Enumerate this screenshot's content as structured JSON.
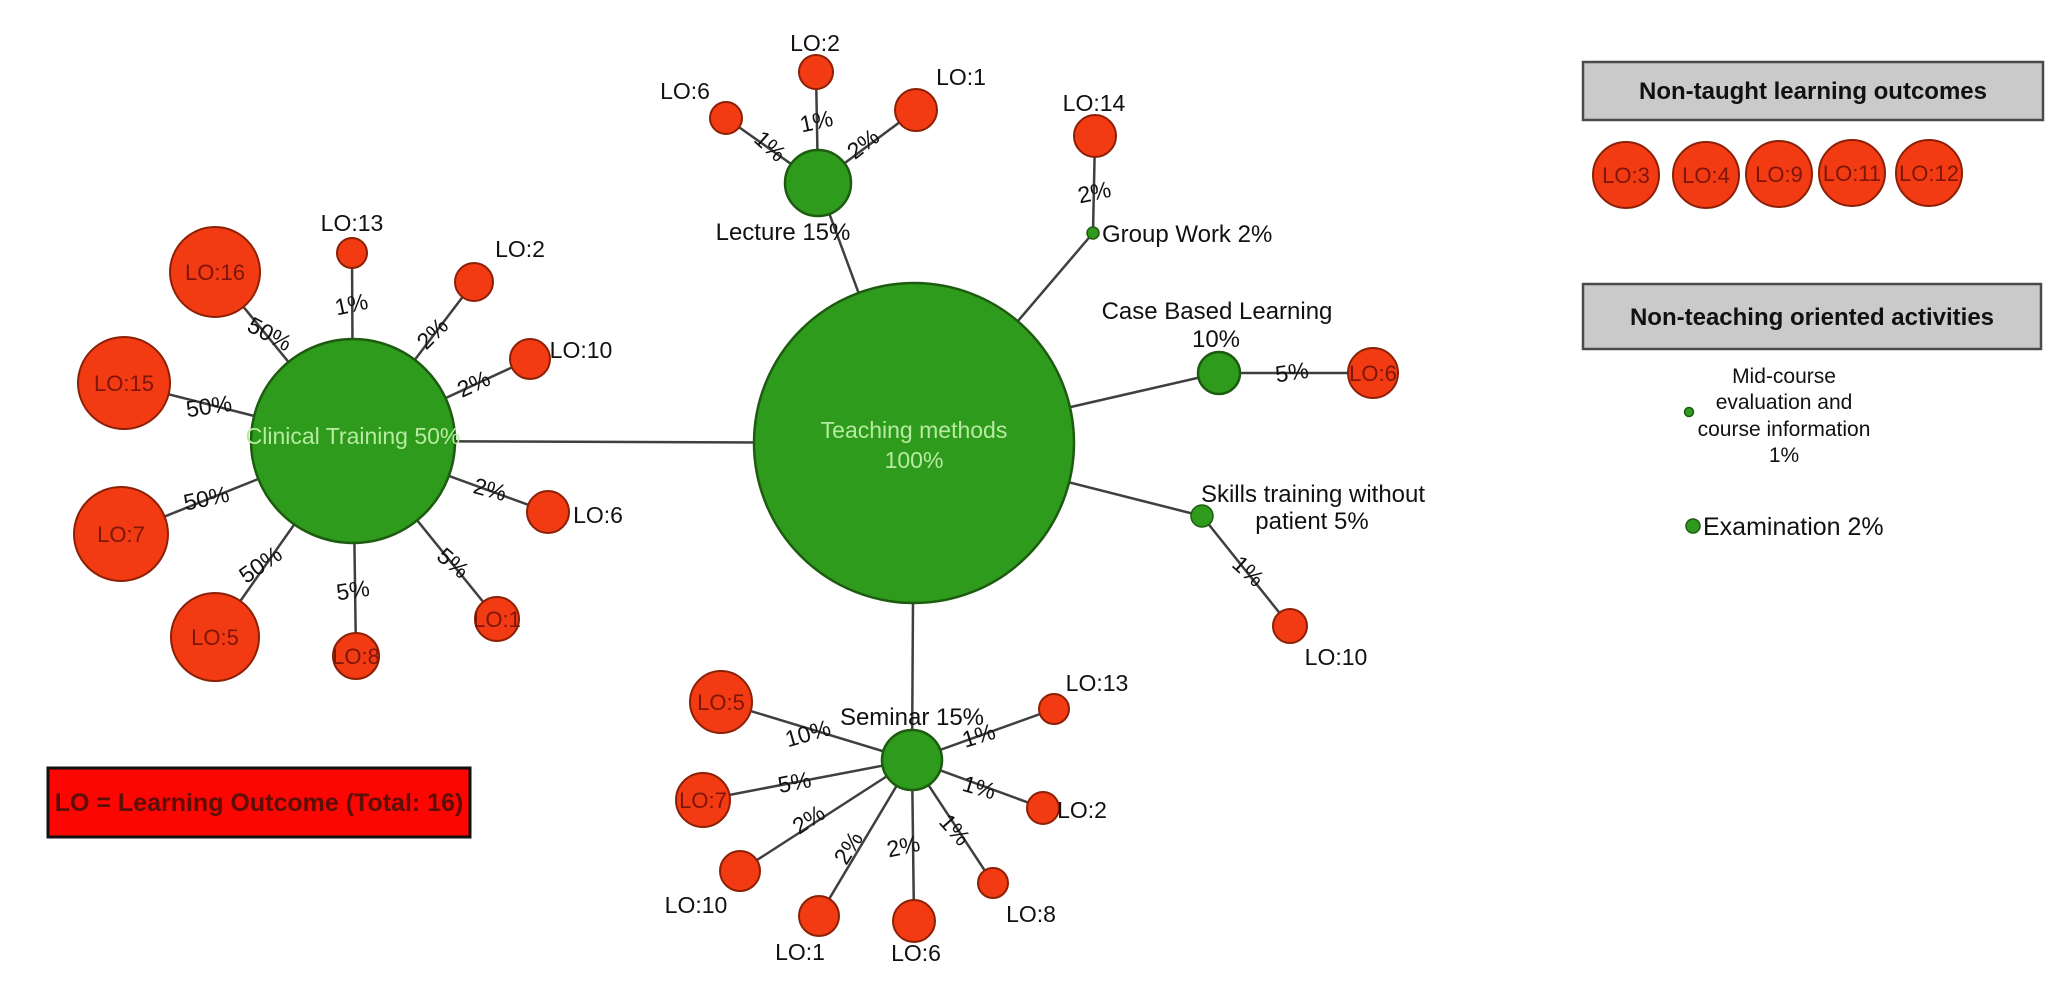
{
  "colors": {
    "hub_green": "#2f9b1c",
    "hub_green_stroke": "#1d5c10",
    "satellite_red": "#f23b12",
    "satellite_red_stroke": "#8c2007",
    "hub_label_text": "#b6eba1",
    "satellite_label_text": "#7e150a",
    "edge_line": "#3f3f3f",
    "outside_text": "#111111",
    "header_bg": "#cacaca",
    "header_border": "#4a4a4a",
    "legend_bg": "#fb0602",
    "legend_border": "#111111",
    "legend_text": "#5c0f06"
  },
  "graph": {
    "center": {
      "label": "Teaching methods",
      "pct": "100%"
    },
    "methods": [
      {
        "name": "Clinical Training",
        "label": "Clinical Training 50%",
        "outcomes": [
          {
            "lo": "LO:16",
            "pct": "50%"
          },
          {
            "lo": "LO:13",
            "pct": "1%"
          },
          {
            "lo": "LO:2",
            "pct": "2%"
          },
          {
            "lo": "LO:10",
            "pct": "2%"
          },
          {
            "lo": "LO:6",
            "pct": "2%"
          },
          {
            "lo": "LO:1",
            "pct": "5%"
          },
          {
            "lo": "LO:8",
            "pct": "5%"
          },
          {
            "lo": "LO:5",
            "pct": "50%"
          },
          {
            "lo": "LO:7",
            "pct": "50%"
          },
          {
            "lo": "LO:15",
            "pct": "50%"
          }
        ]
      },
      {
        "name": "Lecture",
        "label": "Lecture 15%",
        "outcomes": [
          {
            "lo": "LO:6",
            "pct": "1%"
          },
          {
            "lo": "LO:2",
            "pct": "1%"
          },
          {
            "lo": "LO:1",
            "pct": "2%"
          }
        ]
      },
      {
        "name": "Group Work",
        "label": "Group Work 2%",
        "outcomes": [
          {
            "lo": "LO:14",
            "pct": "2%"
          }
        ]
      },
      {
        "name": "Case Based Learning",
        "label": "Case Based Learning",
        "pct": "10%",
        "outcomes": [
          {
            "lo": "LO:6",
            "pct": "5%"
          }
        ]
      },
      {
        "name": "Skills training without patient",
        "lines": [
          "Skills training without",
          "patient 5%"
        ],
        "outcomes": [
          {
            "lo": "LO:10",
            "pct": "1%"
          }
        ]
      },
      {
        "name": "Seminar",
        "label": "Seminar 15%",
        "outcomes": [
          {
            "lo": "LO:5",
            "pct": "10%"
          },
          {
            "lo": "LO:7",
            "pct": "5%"
          },
          {
            "lo": "LO:10",
            "pct": "2%"
          },
          {
            "lo": "LO:1",
            "pct": "2%"
          },
          {
            "lo": "LO:6",
            "pct": "2%"
          },
          {
            "lo": "LO:8",
            "pct": "1%"
          },
          {
            "lo": "LO:2",
            "pct": "1%"
          },
          {
            "lo": "LO:13",
            "pct": "1%"
          }
        ]
      }
    ]
  },
  "non_taught": {
    "header": "Non-taught learning outcomes",
    "outcomes": [
      "LO:3",
      "LO:4",
      "LO:9",
      "LO:11",
      "LO:12"
    ]
  },
  "non_teaching": {
    "header": "Non-teaching oriented activities",
    "items": [
      {
        "lines": [
          "Mid-course",
          "evaluation and",
          "course information",
          "1%"
        ]
      },
      {
        "label": "Examination 2%"
      }
    ]
  },
  "legend": {
    "label": "LO = Learning Outcome (Total: 16)"
  }
}
